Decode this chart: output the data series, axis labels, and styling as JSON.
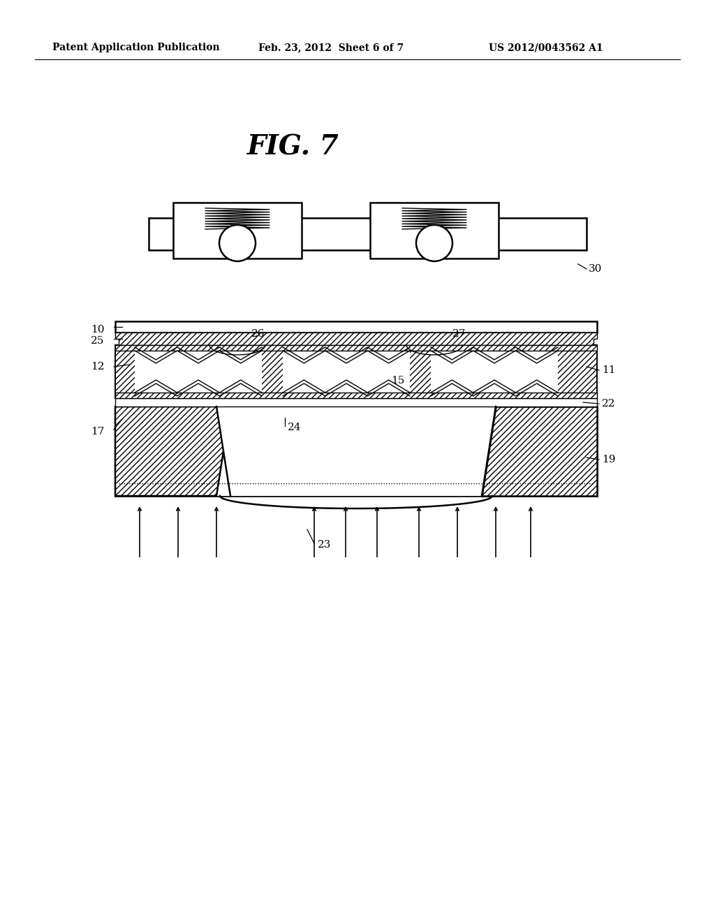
{
  "title": "FIG. 7",
  "header_left": "Patent Application Publication",
  "header_center": "Feb. 23, 2012  Sheet 6 of 7",
  "header_right": "US 2012/0043562 A1",
  "bg_color": "#ffffff",
  "line_color": "#000000"
}
